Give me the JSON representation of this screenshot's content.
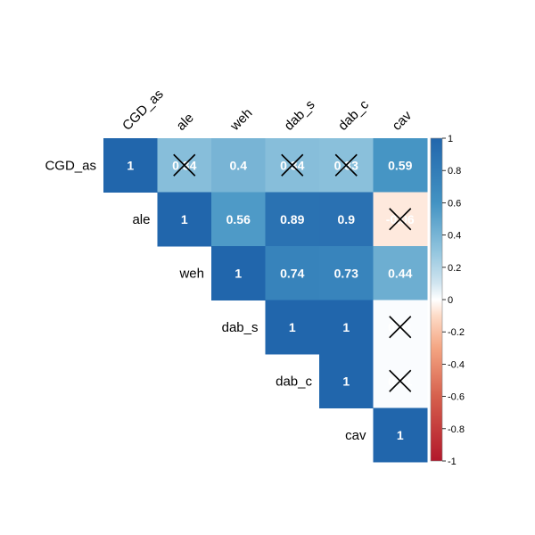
{
  "chart_data": {
    "type": "heatmap",
    "variables": [
      "CGD_as",
      "ale",
      "weh",
      "dab_s",
      "dab_c",
      "cav"
    ],
    "matrix": [
      [
        1,
        0.34,
        0.4,
        0.34,
        0.33,
        0.59
      ],
      [
        null,
        1,
        0.56,
        0.89,
        0.9,
        -0.06
      ],
      [
        null,
        null,
        1,
        0.74,
        0.73,
        0.44
      ],
      [
        null,
        null,
        null,
        1,
        1,
        0.01
      ],
      [
        null,
        null,
        null,
        null,
        1,
        0.01
      ],
      [
        null,
        null,
        null,
        null,
        null,
        1
      ]
    ],
    "labels": [
      [
        "1",
        "0.34",
        "0.4",
        "0.34",
        "0.33",
        "0.59"
      ],
      [
        null,
        "1",
        "0.56",
        "0.89",
        "0.9",
        "-0.06"
      ],
      [
        null,
        null,
        "1",
        "0.74",
        "0.73",
        "0.44"
      ],
      [
        null,
        null,
        null,
        "1",
        "1",
        "0.01"
      ],
      [
        null,
        null,
        null,
        null,
        "1",
        "0.01"
      ],
      [
        null,
        null,
        null,
        null,
        null,
        "1"
      ]
    ],
    "insignificant": [
      [
        0,
        1
      ],
      [
        0,
        3
      ],
      [
        0,
        4
      ],
      [
        1,
        5
      ],
      [
        3,
        5
      ],
      [
        4,
        5
      ]
    ],
    "legend": {
      "range": [
        -1,
        1
      ],
      "ticks": [
        "1",
        "0.8",
        "0.6",
        "0.4",
        "0.2",
        "0",
        "-0.2",
        "-0.4",
        "-0.6",
        "-0.8",
        "-1"
      ],
      "colors": {
        "low": "#b2182b",
        "mid": "#ffffff",
        "high": "#2166ac"
      },
      "placement": "right"
    },
    "layout": "upper-triangle"
  }
}
